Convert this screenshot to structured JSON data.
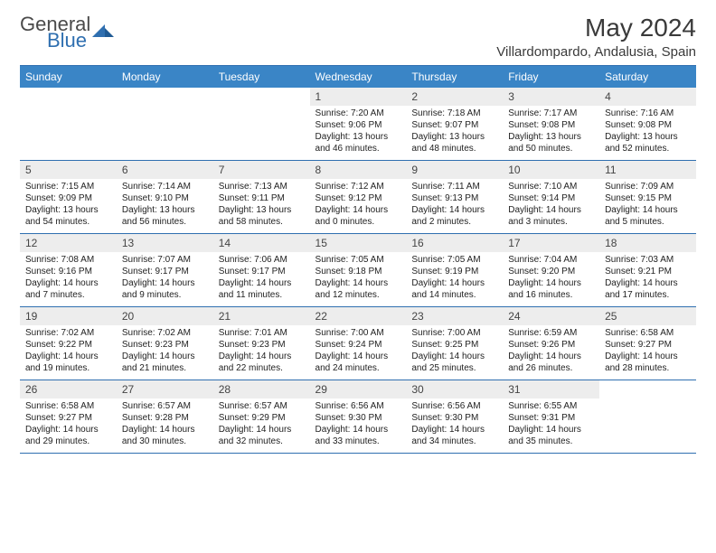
{
  "brand": {
    "word1": "General",
    "word2": "Blue"
  },
  "title": "May 2024",
  "location": "Villardompardo, Andalusia, Spain",
  "colors": {
    "header_bg": "#3a85c6",
    "header_text": "#ffffff",
    "rule": "#2f6fb0",
    "daynum_bg": "#ededed",
    "text": "#222222",
    "brand_blue": "#2f6fb0",
    "brand_gray": "#4a4a4a"
  },
  "day_headers": [
    "Sunday",
    "Monday",
    "Tuesday",
    "Wednesday",
    "Thursday",
    "Friday",
    "Saturday"
  ],
  "weeks": [
    [
      null,
      null,
      null,
      {
        "n": "1",
        "sunrise": "7:20 AM",
        "sunset": "9:06 PM",
        "dayh": "13",
        "daym": "46"
      },
      {
        "n": "2",
        "sunrise": "7:18 AM",
        "sunset": "9:07 PM",
        "dayh": "13",
        "daym": "48"
      },
      {
        "n": "3",
        "sunrise": "7:17 AM",
        "sunset": "9:08 PM",
        "dayh": "13",
        "daym": "50"
      },
      {
        "n": "4",
        "sunrise": "7:16 AM",
        "sunset": "9:08 PM",
        "dayh": "13",
        "daym": "52"
      }
    ],
    [
      {
        "n": "5",
        "sunrise": "7:15 AM",
        "sunset": "9:09 PM",
        "dayh": "13",
        "daym": "54"
      },
      {
        "n": "6",
        "sunrise": "7:14 AM",
        "sunset": "9:10 PM",
        "dayh": "13",
        "daym": "56"
      },
      {
        "n": "7",
        "sunrise": "7:13 AM",
        "sunset": "9:11 PM",
        "dayh": "13",
        "daym": "58"
      },
      {
        "n": "8",
        "sunrise": "7:12 AM",
        "sunset": "9:12 PM",
        "dayh": "14",
        "daym": "0"
      },
      {
        "n": "9",
        "sunrise": "7:11 AM",
        "sunset": "9:13 PM",
        "dayh": "14",
        "daym": "2"
      },
      {
        "n": "10",
        "sunrise": "7:10 AM",
        "sunset": "9:14 PM",
        "dayh": "14",
        "daym": "3"
      },
      {
        "n": "11",
        "sunrise": "7:09 AM",
        "sunset": "9:15 PM",
        "dayh": "14",
        "daym": "5"
      }
    ],
    [
      {
        "n": "12",
        "sunrise": "7:08 AM",
        "sunset": "9:16 PM",
        "dayh": "14",
        "daym": "7"
      },
      {
        "n": "13",
        "sunrise": "7:07 AM",
        "sunset": "9:17 PM",
        "dayh": "14",
        "daym": "9"
      },
      {
        "n": "14",
        "sunrise": "7:06 AM",
        "sunset": "9:17 PM",
        "dayh": "14",
        "daym": "11"
      },
      {
        "n": "15",
        "sunrise": "7:05 AM",
        "sunset": "9:18 PM",
        "dayh": "14",
        "daym": "12"
      },
      {
        "n": "16",
        "sunrise": "7:05 AM",
        "sunset": "9:19 PM",
        "dayh": "14",
        "daym": "14"
      },
      {
        "n": "17",
        "sunrise": "7:04 AM",
        "sunset": "9:20 PM",
        "dayh": "14",
        "daym": "16"
      },
      {
        "n": "18",
        "sunrise": "7:03 AM",
        "sunset": "9:21 PM",
        "dayh": "14",
        "daym": "17"
      }
    ],
    [
      {
        "n": "19",
        "sunrise": "7:02 AM",
        "sunset": "9:22 PM",
        "dayh": "14",
        "daym": "19"
      },
      {
        "n": "20",
        "sunrise": "7:02 AM",
        "sunset": "9:23 PM",
        "dayh": "14",
        "daym": "21"
      },
      {
        "n": "21",
        "sunrise": "7:01 AM",
        "sunset": "9:23 PM",
        "dayh": "14",
        "daym": "22"
      },
      {
        "n": "22",
        "sunrise": "7:00 AM",
        "sunset": "9:24 PM",
        "dayh": "14",
        "daym": "24"
      },
      {
        "n": "23",
        "sunrise": "7:00 AM",
        "sunset": "9:25 PM",
        "dayh": "14",
        "daym": "25"
      },
      {
        "n": "24",
        "sunrise": "6:59 AM",
        "sunset": "9:26 PM",
        "dayh": "14",
        "daym": "26"
      },
      {
        "n": "25",
        "sunrise": "6:58 AM",
        "sunset": "9:27 PM",
        "dayh": "14",
        "daym": "28"
      }
    ],
    [
      {
        "n": "26",
        "sunrise": "6:58 AM",
        "sunset": "9:27 PM",
        "dayh": "14",
        "daym": "29"
      },
      {
        "n": "27",
        "sunrise": "6:57 AM",
        "sunset": "9:28 PM",
        "dayh": "14",
        "daym": "30"
      },
      {
        "n": "28",
        "sunrise": "6:57 AM",
        "sunset": "9:29 PM",
        "dayh": "14",
        "daym": "32"
      },
      {
        "n": "29",
        "sunrise": "6:56 AM",
        "sunset": "9:30 PM",
        "dayh": "14",
        "daym": "33"
      },
      {
        "n": "30",
        "sunrise": "6:56 AM",
        "sunset": "9:30 PM",
        "dayh": "14",
        "daym": "34"
      },
      {
        "n": "31",
        "sunrise": "6:55 AM",
        "sunset": "9:31 PM",
        "dayh": "14",
        "daym": "35"
      },
      null
    ]
  ],
  "labels": {
    "sunrise_prefix": "Sunrise: ",
    "sunset_prefix": "Sunset: ",
    "daylight_prefix": "Daylight: ",
    "hours_word": " hours",
    "and_word": "and ",
    "minutes_word": " minutes."
  },
  "typography": {
    "title_fontsize": 28,
    "location_fontsize": 15,
    "header_fontsize": 12,
    "daynum_fontsize": 12,
    "detail_fontsize": 10
  }
}
